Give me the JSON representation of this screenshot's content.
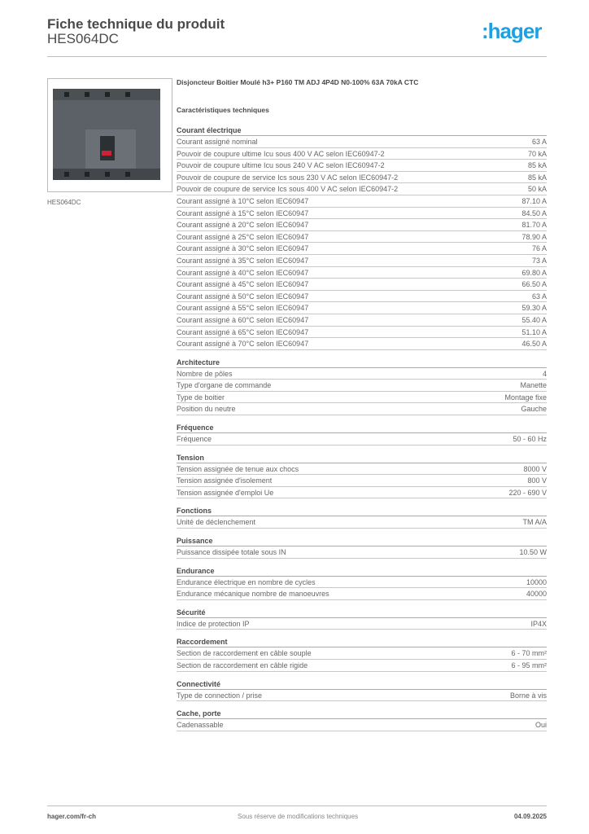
{
  "header": {
    "title": "Fiche technique du produit",
    "reference": "HES064DC",
    "logo": ":hager"
  },
  "product": {
    "image_caption": "HES064DC",
    "description": "Disjoncteur Boitier Moulé h3+ P160 TM ADJ 4P4D N0-100% 63A 70kA CTC",
    "characteristics_title": "Caractéristiques techniques"
  },
  "sections": [
    {
      "title": "Courant électrique",
      "rows": [
        {
          "label": "Courant assigné nominal",
          "value": "63 A"
        },
        {
          "label": "Pouvoir de coupure ultime Icu sous 400 V AC selon IEC60947-2",
          "value": "70 kA"
        },
        {
          "label": "Pouvoir de coupure ultime Icu sous 240 V AC selon IEC60947-2",
          "value": "85 kA"
        },
        {
          "label": "Pouvoir de coupure de service Ics sous 230 V AC selon IEC60947-2",
          "value": "85 kA"
        },
        {
          "label": "Pouvoir de coupure de service Ics sous 400 V AC selon IEC60947-2",
          "value": "50 kA"
        },
        {
          "label": "Courant assigné à 10°C selon IEC60947",
          "value": "87.10 A"
        },
        {
          "label": "Courant assigné à 15°C selon IEC60947",
          "value": "84.50 A"
        },
        {
          "label": "Courant assigné à 20°C selon IEC60947",
          "value": "81.70 A"
        },
        {
          "label": "Courant assigné à 25°C selon IEC60947",
          "value": "78.90 A"
        },
        {
          "label": "Courant assigné à 30°C selon IEC60947",
          "value": "76 A"
        },
        {
          "label": "Courant assigné à 35°C selon IEC60947",
          "value": "73 A"
        },
        {
          "label": "Courant assigné à 40°C selon IEC60947",
          "value": "69.80 A"
        },
        {
          "label": "Courant assigné à 45°C selon IEC60947",
          "value": "66.50 A"
        },
        {
          "label": "Courant assigné à 50°C selon IEC60947",
          "value": "63 A"
        },
        {
          "label": "Courant assigné à 55°C selon IEC60947",
          "value": "59.30 A"
        },
        {
          "label": "Courant assigné à 60°C selon IEC60947",
          "value": "55.40 A"
        },
        {
          "label": "Courant assigné à 65°C selon IEC60947",
          "value": "51.10 A"
        },
        {
          "label": "Courant assigné à 70°C selon IEC60947",
          "value": "46.50 A"
        }
      ]
    },
    {
      "title": "Architecture",
      "rows": [
        {
          "label": "Nombre de pôles",
          "value": "4"
        },
        {
          "label": "Type d'organe de commande",
          "value": "Manette"
        },
        {
          "label": "Type de boitier",
          "value": "Montage fixe"
        },
        {
          "label": "Position du neutre",
          "value": "Gauche"
        }
      ]
    },
    {
      "title": "Fréquence",
      "rows": [
        {
          "label": "Fréquence",
          "value": "50 - 60 Hz"
        }
      ]
    },
    {
      "title": "Tension",
      "rows": [
        {
          "label": "Tension assignée de tenue aux chocs",
          "value": "8000 V"
        },
        {
          "label": "Tension assignée d'isolement",
          "value": "800 V"
        },
        {
          "label": "Tension assignée d'emploi Ue",
          "value": "220 - 690 V"
        }
      ]
    },
    {
      "title": "Fonctions",
      "rows": [
        {
          "label": "Unité de déclenchement",
          "value": "TM A/A"
        }
      ]
    },
    {
      "title": "Puissance",
      "rows": [
        {
          "label": "Puissance dissipée totale sous IN",
          "value": "10.50 W"
        }
      ]
    },
    {
      "title": "Endurance",
      "rows": [
        {
          "label": "Endurance électrique en nombre de cycles",
          "value": "10000"
        },
        {
          "label": "Endurance mécanique nombre de manoeuvres",
          "value": "40000"
        }
      ]
    },
    {
      "title": "Sécurité",
      "rows": [
        {
          "label": "Indice de protection IP",
          "value": "IP4X"
        }
      ]
    },
    {
      "title": "Raccordement",
      "rows": [
        {
          "label": "Section de raccordement en câble souple",
          "value": "6 - 70 mm²"
        },
        {
          "label": "Section de raccordement en câble rigide",
          "value": "6 - 95 mm²"
        }
      ]
    },
    {
      "title": "Connectivité",
      "rows": [
        {
          "label": "Type de connection / prise",
          "value": "Borne à vis"
        }
      ]
    },
    {
      "title": "Cache, porte",
      "rows": [
        {
          "label": "Cadenassable",
          "value": "Oui"
        }
      ]
    }
  ],
  "footer": {
    "url": "hager.com/fr-ch",
    "note": "Sous réserve de modifications techniques",
    "date": "04.09.2025"
  },
  "colors": {
    "brand": "#1da1e0"
  }
}
